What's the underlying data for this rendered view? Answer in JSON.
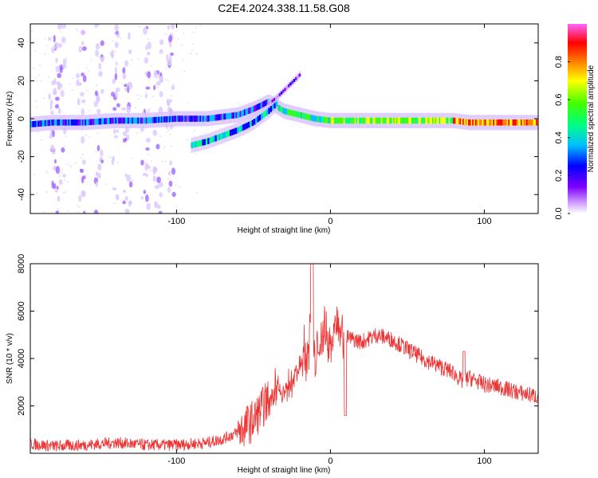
{
  "title": "C2E4.2024.338.11.58.G08",
  "chart_data": [
    {
      "type": "heatmap",
      "title": "C2E4.2024.338.11.58.G08",
      "xlabel": "Height of straight line (km)",
      "ylabel": "Frequency (Hz)",
      "xlim": [
        -195,
        135
      ],
      "ylim": [
        -50,
        50
      ],
      "xticks": [
        -100,
        0,
        100
      ],
      "yticks": [
        -40,
        -20,
        0,
        20,
        40
      ],
      "colorbar": {
        "label": "Normalized spectral amplitude",
        "range": [
          0,
          1
        ],
        "ticks": [
          0.0,
          0.2,
          0.4,
          0.6,
          0.8
        ],
        "colormap": [
          "#ffffff",
          "#cc99ff",
          "#8000ff",
          "#0000ff",
          "#00bfff",
          "#00ff80",
          "#40ff00",
          "#ffff00",
          "#ff8000",
          "#ff0000",
          "#ff33cc",
          "#ff66ff"
        ]
      },
      "grid": false,
      "series": [
        {
          "x": [
            -195,
            -180,
            -160,
            -140,
            -120,
            -100,
            -90,
            -80,
            -70,
            -60,
            -50,
            -40,
            -30,
            -20,
            -10,
            0,
            10,
            30,
            50,
            70,
            80,
            90,
            110,
            135
          ],
          "y": [
            -3,
            -2,
            -2,
            -1,
            -1,
            0,
            0,
            0,
            1,
            2,
            5,
            9,
            4,
            2,
            0,
            -1,
            -1,
            -1,
            -1,
            -1,
            -1,
            -2,
            -2,
            -2
          ]
        },
        {
          "x": [
            -90,
            -80,
            -70,
            -60,
            -50,
            -40,
            -35
          ],
          "y": [
            -14,
            -12,
            -9,
            -6,
            -2,
            4,
            8
          ]
        },
        {
          "x": [
            -40,
            -35,
            -30,
            -25,
            -20
          ],
          "y": [
            8,
            11,
            15,
            19,
            23
          ]
        }
      ]
    },
    {
      "type": "line",
      "xlabel": "Height of straight line (km)",
      "ylabel": "SNR (10 * v/v)",
      "xlim": [
        -195,
        135
      ],
      "ylim": [
        0,
        8000
      ],
      "xticks": [
        -100,
        0,
        100
      ],
      "yticks": [
        2000,
        4000,
        6000,
        8000
      ],
      "grid": false,
      "color": "#ee3333",
      "x": [
        -195,
        -180,
        -160,
        -140,
        -120,
        -100,
        -90,
        -80,
        -70,
        -60,
        -50,
        -40,
        -35,
        -30,
        -25,
        -20,
        -15,
        -12,
        -10,
        -5,
        0,
        5,
        10,
        20,
        30,
        40,
        50,
        60,
        70,
        80,
        86,
        90,
        100,
        110,
        120,
        135
      ],
      "y": [
        400,
        300,
        350,
        450,
        350,
        350,
        400,
        450,
        600,
        900,
        1400,
        2300,
        2900,
        2500,
        3200,
        3500,
        4300,
        5600,
        3600,
        5200,
        4500,
        5800,
        4900,
        4700,
        5000,
        4800,
        4400,
        4000,
        3700,
        3400,
        3000,
        3200,
        2900,
        2800,
        2600,
        2400
      ]
    }
  ]
}
